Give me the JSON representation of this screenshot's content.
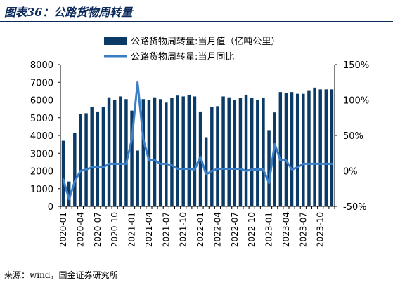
{
  "figure": {
    "title": "图表36：公路货物周转量",
    "source": "来源：wind，国金证券研究所"
  },
  "colors": {
    "bar": "#0b3a66",
    "line": "#3a7ec6",
    "title": "#0b2a5b"
  },
  "chart_data": {
    "type": "bar",
    "title": "",
    "xlabel": "",
    "ylabel": "",
    "ylim": [
      0,
      8000
    ],
    "y2lim": [
      -50,
      150
    ],
    "yticks": [
      "0",
      "1000",
      "2000",
      "3000",
      "4000",
      "5000",
      "6000",
      "7000",
      "8000"
    ],
    "y2ticks": [
      "-50%",
      "0%",
      "50%",
      "100%",
      "150%"
    ],
    "legend_position": "top-right",
    "grid": false,
    "x_tick_labels": [
      "2020-01",
      "2020-04",
      "2020-07",
      "2020-10",
      "2021-01",
      "2021-04",
      "2021-07",
      "2021-10",
      "2022-01",
      "2022-04",
      "2022-07",
      "2022-10",
      "2023-01",
      "2023-04",
      "2023-07",
      "2023-10"
    ],
    "categories": [
      "2020-01",
      "2020-02",
      "2020-03",
      "2020-04",
      "2020-05",
      "2020-06",
      "2020-07",
      "2020-08",
      "2020-09",
      "2020-10",
      "2020-11",
      "2020-12",
      "2021-01",
      "2021-02",
      "2021-03",
      "2021-04",
      "2021-05",
      "2021-06",
      "2021-07",
      "2021-08",
      "2021-09",
      "2021-10",
      "2021-11",
      "2021-12",
      "2022-01",
      "2022-02",
      "2022-03",
      "2022-04",
      "2022-05",
      "2022-06",
      "2022-07",
      "2022-08",
      "2022-09",
      "2022-10",
      "2022-11",
      "2022-12",
      "2023-01",
      "2023-02",
      "2023-03",
      "2023-04",
      "2023-05",
      "2023-06",
      "2023-07",
      "2023-08",
      "2023-09",
      "2023-10",
      "2023-11",
      "2023-12"
    ],
    "series": [
      {
        "name": "公路货物周转量:当月值（亿吨公里）",
        "type": "bar",
        "axis": "left",
        "values": [
          3700,
          1400,
          4150,
          5200,
          5250,
          5600,
          5350,
          5600,
          6150,
          6000,
          6200,
          6050,
          5400,
          3150,
          6050,
          6000,
          6150,
          6050,
          5850,
          6100,
          6250,
          6200,
          6300,
          6200,
          5350,
          3900,
          5600,
          5650,
          6200,
          6150,
          6000,
          6100,
          6300,
          6100,
          6000,
          6100,
          4300,
          5300,
          6450,
          6400,
          6450,
          6350,
          6350,
          6550,
          6700,
          6600,
          6600,
          6600
        ]
      },
      {
        "name": "公路货物周转量:当月同比",
        "type": "line",
        "axis": "right",
        "values": [
          -12,
          -40,
          -15,
          0,
          2,
          5,
          5,
          5,
          10,
          10,
          10,
          10,
          45,
          125,
          45,
          15,
          15,
          10,
          10,
          8,
          3,
          3,
          3,
          2,
          20,
          -5,
          0,
          3,
          3,
          3,
          3,
          3,
          0,
          2,
          2,
          2,
          -17,
          38,
          15,
          15,
          2,
          5,
          10,
          10,
          10,
          10,
          10,
          10
        ]
      }
    ]
  }
}
